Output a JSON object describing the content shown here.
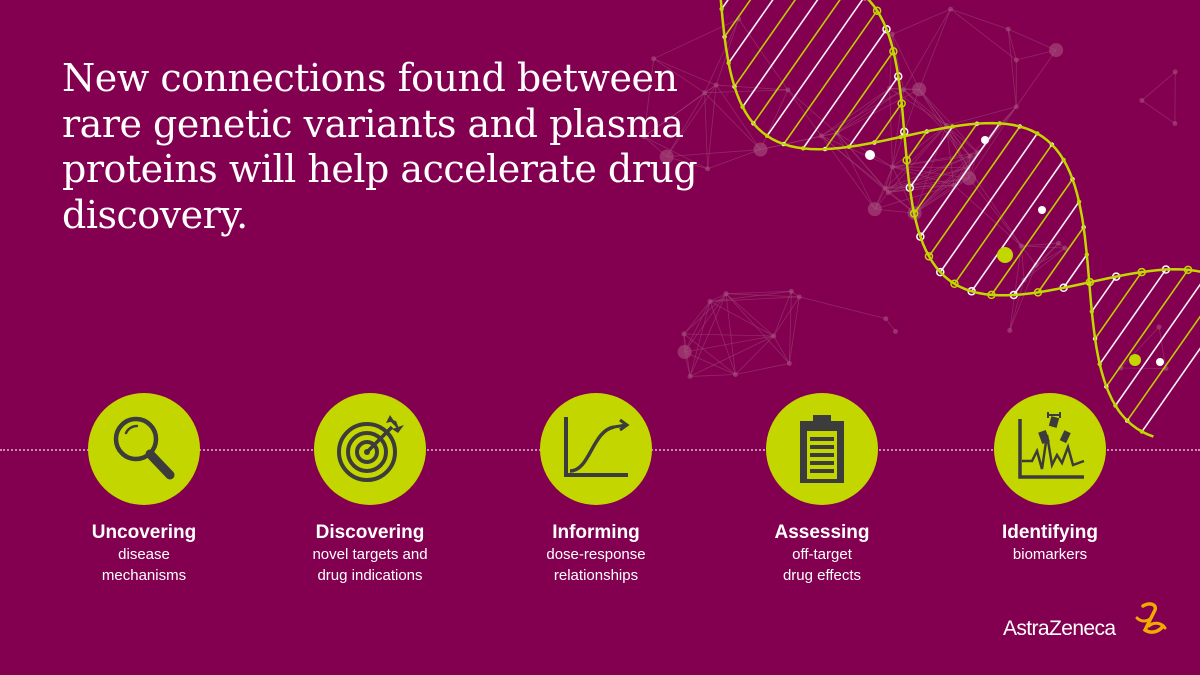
{
  "headline": "New connections found between rare genetic variants and plasma proteins will help accelerate drug discovery.",
  "colors": {
    "background": "#830051",
    "accent": "#c4d600",
    "icon_ink": "#3c3c3c",
    "text": "#ffffff",
    "logo_mark": "#f0ab00"
  },
  "features": [
    {
      "icon": "magnifier-icon",
      "title": "Uncovering",
      "desc_line1": "disease",
      "desc_line2": "mechanisms"
    },
    {
      "icon": "target-icon",
      "title": "Discovering",
      "desc_line1": "novel targets and",
      "desc_line2": "drug indications"
    },
    {
      "icon": "dose-response-curve-icon",
      "title": "Informing",
      "desc_line1": "dose-response",
      "desc_line2": "relationships"
    },
    {
      "icon": "clipboard-icon",
      "title": "Assessing",
      "desc_line1": "off-target",
      "desc_line2": "drug effects"
    },
    {
      "icon": "biomarker-chart-icon",
      "title": "Identifying",
      "desc_line1": "biomarkers",
      "desc_line2": ""
    }
  ],
  "brand": {
    "name": "AstraZeneca",
    "icon": "astrazeneca-logo-icon"
  }
}
